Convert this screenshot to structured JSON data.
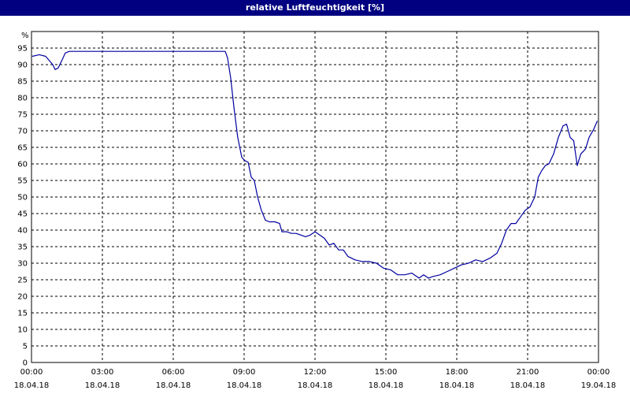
{
  "window": {
    "title": "relative Luftfeuchtigkeit [%]"
  },
  "chart_data": {
    "type": "line",
    "title": "relative Luftfeuchtigkeit [%]",
    "ylabel": "%",
    "xlabel": "",
    "ylim": [
      0,
      100
    ],
    "y_ticks": [
      0,
      5,
      10,
      15,
      20,
      25,
      30,
      35,
      40,
      45,
      50,
      55,
      60,
      65,
      70,
      75,
      80,
      85,
      90,
      95
    ],
    "xlim": [
      0,
      24
    ],
    "x_ticks": [
      {
        "hour": 0,
        "time": "00:00",
        "date": "18.04.18"
      },
      {
        "hour": 3,
        "time": "03:00",
        "date": "18.04.18"
      },
      {
        "hour": 6,
        "time": "06:00",
        "date": "18.04.18"
      },
      {
        "hour": 9,
        "time": "09:00",
        "date": "18.04.18"
      },
      {
        "hour": 12,
        "time": "12:00",
        "date": "18.04.18"
      },
      {
        "hour": 15,
        "time": "15:00",
        "date": "18.04.18"
      },
      {
        "hour": 18,
        "time": "18:00",
        "date": "18.04.18"
      },
      {
        "hour": 21,
        "time": "21:00",
        "date": "18.04.18"
      },
      {
        "hour": 24,
        "time": "00:00",
        "date": "19.04.18"
      }
    ],
    "grid": true,
    "series": [
      {
        "color": "#0000a0",
        "points": [
          [
            0.03,
            92.5
          ],
          [
            0.33,
            93
          ],
          [
            0.6,
            92.5
          ],
          [
            0.9,
            90
          ],
          [
            1.0,
            88.5
          ],
          [
            1.13,
            89
          ],
          [
            1.3,
            91.5
          ],
          [
            1.43,
            93.5
          ],
          [
            1.6,
            94
          ],
          [
            3,
            94
          ],
          [
            5,
            94
          ],
          [
            7,
            94
          ],
          [
            8.2,
            94
          ],
          [
            8.3,
            92
          ],
          [
            8.43,
            86
          ],
          [
            8.57,
            77
          ],
          [
            8.73,
            68
          ],
          [
            8.9,
            62
          ],
          [
            9.03,
            61
          ],
          [
            9.17,
            60.5
          ],
          [
            9.3,
            56
          ],
          [
            9.43,
            55
          ],
          [
            9.57,
            50
          ],
          [
            9.73,
            46
          ],
          [
            9.9,
            43
          ],
          [
            10.07,
            42.5
          ],
          [
            10.3,
            42.5
          ],
          [
            10.5,
            42
          ],
          [
            10.6,
            39.5
          ],
          [
            10.8,
            39.5
          ],
          [
            11.0,
            39
          ],
          [
            11.2,
            39
          ],
          [
            11.4,
            38.5
          ],
          [
            11.6,
            38
          ],
          [
            11.8,
            38.5
          ],
          [
            12.0,
            39.5
          ],
          [
            12.2,
            38.5
          ],
          [
            12.4,
            37.5
          ],
          [
            12.6,
            35.5
          ],
          [
            12.8,
            36
          ],
          [
            13.0,
            34
          ],
          [
            13.2,
            34
          ],
          [
            13.4,
            32
          ],
          [
            13.7,
            31
          ],
          [
            14.0,
            30.5
          ],
          [
            14.3,
            30.5
          ],
          [
            14.6,
            30
          ],
          [
            14.9,
            28.5
          ],
          [
            15.2,
            28
          ],
          [
            15.5,
            26.5
          ],
          [
            15.8,
            26.5
          ],
          [
            16.1,
            27
          ],
          [
            16.4,
            25.5
          ],
          [
            16.6,
            26.5
          ],
          [
            16.8,
            25.5
          ],
          [
            17.0,
            26
          ],
          [
            17.3,
            26.5
          ],
          [
            17.6,
            27.5
          ],
          [
            17.9,
            28.5
          ],
          [
            18.2,
            29.5
          ],
          [
            18.5,
            30
          ],
          [
            18.8,
            31
          ],
          [
            19.1,
            30.5
          ],
          [
            19.4,
            31.5
          ],
          [
            19.7,
            33
          ],
          [
            19.9,
            36
          ],
          [
            20.1,
            40
          ],
          [
            20.3,
            42
          ],
          [
            20.5,
            42
          ],
          [
            20.7,
            44
          ],
          [
            20.9,
            46
          ],
          [
            21.1,
            47
          ],
          [
            21.3,
            50
          ],
          [
            21.45,
            56
          ],
          [
            21.6,
            58
          ],
          [
            21.75,
            59.5
          ],
          [
            21.9,
            60
          ],
          [
            22.1,
            63
          ],
          [
            22.3,
            68
          ],
          [
            22.5,
            71.5
          ],
          [
            22.65,
            72
          ],
          [
            22.8,
            68
          ],
          [
            22.95,
            67
          ],
          [
            23.1,
            59.5
          ],
          [
            23.25,
            63
          ],
          [
            23.45,
            64.5
          ],
          [
            23.6,
            68
          ],
          [
            23.8,
            70.5
          ],
          [
            23.95,
            73
          ]
        ]
      }
    ]
  }
}
